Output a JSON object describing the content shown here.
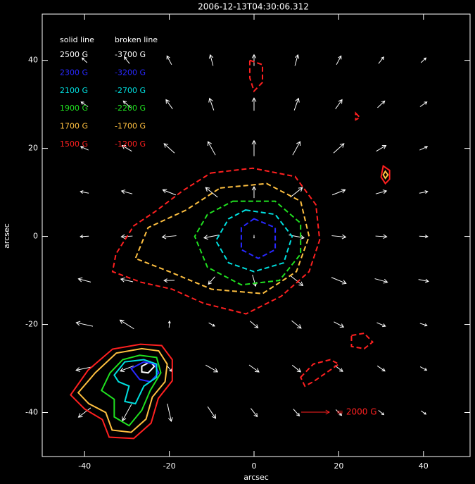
{
  "chart_data": {
    "type": "vector",
    "title": "2006-12-13T04:30:06.312",
    "xlabel": "arcsec",
    "ylabel": "arcsec",
    "xlim": [
      -50,
      51
    ],
    "ylim": [
      -50,
      50.5
    ],
    "xticks": [
      -40,
      -20,
      0,
      20,
      40
    ],
    "yticks": [
      -40,
      -20,
      0,
      20,
      40
    ],
    "vector_color": "#ffffff",
    "legend": {
      "solid_header": "solid line",
      "broken_header": "broken line"
    },
    "reference_vector": {
      "value": 2000,
      "label": "= 2000 G",
      "color": "#ff2020"
    },
    "vectors": {
      "x": [
        -40,
        -30,
        -20,
        -10,
        0,
        10,
        20,
        30,
        40
      ],
      "y": [
        40,
        30,
        20,
        10,
        0,
        -10,
        -20,
        -30,
        -40
      ],
      "u": [
        [
          -360,
          -370,
          -330,
          -200,
          0,
          210,
          330,
          370,
          360
        ],
        [
          -490,
          -510,
          -470,
          -300,
          0,
          300,
          470,
          510,
          490
        ],
        [
          -550,
          -690,
          -740,
          -530,
          0,
          530,
          740,
          690,
          550
        ],
        [
          -590,
          -770,
          -930,
          -860,
          0,
          860,
          930,
          770,
          590
        ],
        [
          -600,
          -800,
          -1000,
          -1080,
          0,
          1080,
          1000,
          800,
          600
        ],
        [
          -880,
          -860,
          -740,
          -460,
          230,
          920,
          1040,
          900,
          710
        ],
        [
          -1180,
          -990,
          30,
          420,
          560,
          670,
          690,
          610,
          500
        ],
        [
          -1210,
          -940,
          340,
          850,
          700,
          600,
          560,
          540,
          460
        ],
        [
          -870,
          -650,
          280,
          570,
          460,
          430,
          410,
          380,
          350
        ]
      ],
      "v": [
        [
          340,
          470,
          620,
          780,
          800,
          780,
          620,
          470,
          340
        ],
        [
          340,
          480,
          660,
          850,
          900,
          850,
          660,
          480,
          340
        ],
        [
          250,
          410,
          670,
          960,
          1100,
          960,
          670,
          410,
          250
        ],
        [
          120,
          210,
          370,
          690,
          800,
          690,
          370,
          210,
          120
        ],
        [
          -30,
          -50,
          -100,
          -210,
          -200,
          -210,
          -100,
          -50,
          -30
        ],
        [
          230,
          190,
          -20,
          -530,
          -810,
          -730,
          -430,
          -250,
          -140
        ],
        [
          260,
          620,
          460,
          -230,
          -480,
          -530,
          -370,
          -260,
          -160
        ],
        [
          -250,
          -370,
          -420,
          -480,
          -500,
          -480,
          -420,
          -370,
          -250
        ],
        [
          -660,
          -1170,
          -1250,
          -830,
          -590,
          -490,
          -410,
          -310,
          -240
        ]
      ]
    },
    "contour_levels": [
      {
        "value": 2500,
        "label": "2500 G",
        "color": "#ffffff",
        "paths": [
          {
            "x": [
              -26.5,
              -24.5,
              -23.5,
              -25,
              -26.5
            ],
            "y": [
              -29.5,
              -28.5,
              -29.5,
              -31,
              -30.8
            ]
          }
        ]
      },
      {
        "value": 2300,
        "label": "2300 G",
        "color": "#2828ff",
        "paths": [
          {
            "x": [
              -29,
              -26,
              -23.5,
              -22.5,
              -24.5,
              -27
            ],
            "y": [
              -30,
              -28.5,
              -29,
              -31,
              -33,
              -32.5
            ]
          }
        ]
      },
      {
        "value": 2100,
        "label": "2100 G",
        "color": "#00e0e0",
        "paths": [
          {
            "x": [
              -33,
              -30.5,
              -26,
              -23,
              -23,
              -26,
              -28,
              -30.5,
              -29.5,
              -32
            ],
            "y": [
              -31.5,
              -28.5,
              -28,
              -29,
              -32,
              -34,
              -38,
              -37.5,
              -34,
              -33
            ]
          }
        ]
      },
      {
        "value": 1900,
        "label": "1900 G",
        "color": "#20e020",
        "paths": [
          {
            "x": [
              -34,
              -31,
              -27,
              -23,
              -22,
              -24.5,
              -26.5,
              -29.5,
              -33,
              -33,
              -36
            ],
            "y": [
              -31,
              -28,
              -27,
              -27.5,
              -31,
              -35,
              -39.5,
              -43,
              -41,
              -37,
              -35
            ]
          }
        ]
      },
      {
        "value": 1700,
        "label": "1700 G",
        "color": "#ffc040",
        "paths": [
          {
            "x": [
              -37.5,
              -32.5,
              -26.5,
              -22.5,
              -20.5,
              -21,
              -24,
              -25.5,
              -29,
              -33.5,
              -35,
              -39,
              -41.5
            ],
            "y": [
              -31,
              -26.5,
              -25.5,
              -26,
              -29,
              -33,
              -36.5,
              -41.5,
              -44.5,
              -44,
              -40,
              -38,
              -35.5
            ]
          },
          {
            "x": [
              31,
              31.6,
              31,
              30.5
            ],
            "y": [
              14.8,
              14,
              13.2,
              14
            ]
          }
        ]
      },
      {
        "value": 1500,
        "label": "1500 G",
        "color": "#ff2020",
        "paths": [
          {
            "x": [
              -39.2,
              -33.4,
              -26.8,
              -21.8,
              -19.3,
              -19.3,
              -22.6,
              -24.3,
              -28.4,
              -34.2,
              -35.8,
              -40,
              -43.3
            ],
            "y": [
              -30.4,
              -25.6,
              -24.5,
              -24.8,
              -28,
              -32.8,
              -36.8,
              -42.4,
              -45.9,
              -45.6,
              -41.6,
              -39.2,
              -36
            ]
          },
          {
            "x": [
              30.5,
              32,
              32,
              31,
              30
            ],
            "y": [
              16,
              15,
              13,
              12,
              13.5
            ]
          }
        ]
      },
      {
        "value": -3700,
        "label": "-3700 G",
        "color": "#ffffff",
        "paths": []
      },
      {
        "value": -3200,
        "label": "-3200 G",
        "color": "#2828ff",
        "paths": [
          {
            "x": [
              0,
              5,
              5,
              1,
              -3,
              -3
            ],
            "y": [
              4,
              2,
              -3,
              -5,
              -3,
              2
            ]
          }
        ]
      },
      {
        "value": -2700,
        "label": "-2700 G",
        "color": "#00e0e0",
        "paths": [
          {
            "x": [
              -2,
              5,
              9,
              7,
              0,
              -6,
              -9,
              -6
            ],
            "y": [
              6,
              5,
              0,
              -6,
              -8,
              -6,
              -1,
              4
            ]
          }
        ]
      },
      {
        "value": -2200,
        "label": "-2200 G",
        "color": "#20e020",
        "paths": [
          {
            "x": [
              -5,
              5,
              11,
              11,
              6,
              -3,
              -11,
              -14,
              -11
            ],
            "y": [
              8,
              8,
              3,
              -4,
              -10,
              -11,
              -7,
              0,
              5
            ]
          }
        ]
      },
      {
        "value": -1700,
        "label": "-1700 G",
        "color": "#ffc040",
        "paths": [
          {
            "x": [
              -8,
              3,
              11,
              13,
              10,
              2,
              -10,
              -20,
              -28,
              -25,
              -16
            ],
            "y": [
              11,
              12,
              8,
              0,
              -8,
              -13,
              -12,
              -8,
              -5,
              2,
              6
            ]
          }
        ]
      },
      {
        "value": -1200,
        "label": "-1200 G",
        "color": "#ff2020",
        "paths": [
          {
            "x": [
              -10.2,
              -0.3,
              9.7,
              14.6,
              15.5,
              13,
              6.4,
              -1.9,
              -11.9,
              -19.3,
              -26.7,
              -33.4,
              -32.6,
              -28.4,
              -23.4,
              -16.8
            ],
            "y": [
              14.4,
              15.5,
              13.6,
              7.2,
              -0.8,
              -8,
              -13.6,
              -17.6,
              -15.2,
              -12,
              -10.4,
              -8,
              -4,
              2.4,
              5.6,
              10.4
            ]
          },
          {
            "x": [
              -1,
              2,
              2,
              0,
              -1
            ],
            "y": [
              40,
              39,
              35,
              33,
              36
            ]
          },
          {
            "x": [
              24,
              25,
              24
            ],
            "y": [
              28,
              27,
              26.5
            ]
          },
          {
            "x": [
              23,
              26,
              28,
              26,
              23
            ],
            "y": [
              -22.5,
              -22,
              -24,
              -25.5,
              -25
            ]
          },
          {
            "x": [
              11,
              14,
              18,
              20,
              17,
              14,
              12
            ],
            "y": [
              -32,
              -29,
              -28,
              -29,
              -31,
              -33,
              -34
            ]
          }
        ]
      }
    ]
  }
}
